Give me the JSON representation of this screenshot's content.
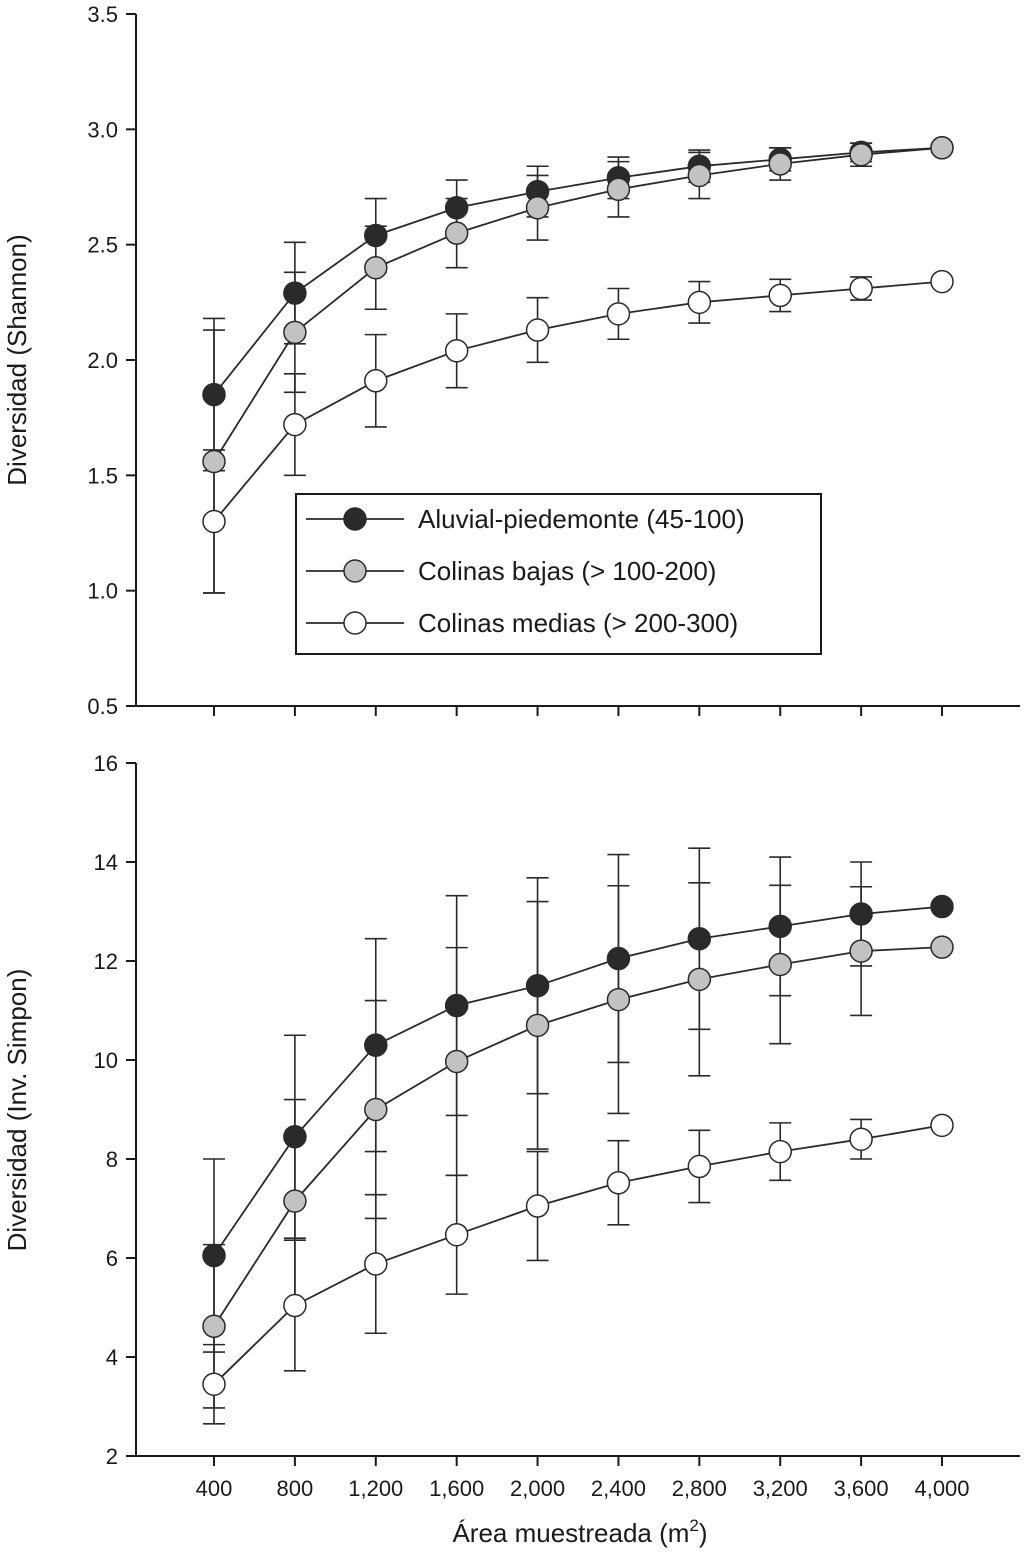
{
  "colors": {
    "Aluvial-piedemonte (45-100)": "#2a2a2a",
    "Colinas bajas (> 100-200)": "#c2c2c2",
    "Colinas medias (> 200-300)": "#ffffff",
    "line": "#2a2a2a"
  },
  "legend": {
    "items": [
      {
        "label": "Aluvial-piedemonte (45-100)"
      },
      {
        "label": "Colinas bajas (> 100-200)"
      },
      {
        "label": "Colinas medias (> 200-300)"
      }
    ],
    "placement": "inside-top-panel-lower-right"
  },
  "xaxis": {
    "label_prefix": "Área muestreada (m",
    "label_sup": "2",
    "label_suffix": ")",
    "tick_labels": [
      "400",
      "800",
      "1,200",
      "1,600",
      "2,000",
      "2,400",
      "2,800",
      "3,200",
      "3,600",
      "4,000"
    ]
  },
  "chart_data": [
    {
      "type": "line",
      "ylabel": "Diversidad (Shannon)",
      "ylim": [
        0.5,
        3.5
      ],
      "yticks": [
        "0.5",
        "1.0",
        "1.5",
        "2.0",
        "2.5",
        "3.0",
        "3.5"
      ],
      "x": [
        400,
        800,
        1200,
        1600,
        2000,
        2400,
        2800,
        3200,
        3600,
        4000
      ],
      "xlim": [
        400,
        4000
      ],
      "grid": false,
      "series": [
        {
          "name": "Aluvial-piedemonte (45-100)",
          "values": [
            1.85,
            2.29,
            2.54,
            2.66,
            2.73,
            2.79,
            2.84,
            2.87,
            2.9,
            2.92
          ],
          "err": [
            0.33,
            0.22,
            0.16,
            0.12,
            0.11,
            0.09,
            0.07,
            0.05,
            0.04,
            0.0
          ]
        },
        {
          "name": "Colinas bajas (> 100-200)",
          "values": [
            1.56,
            2.12,
            2.4,
            2.55,
            2.66,
            2.74,
            2.8,
            2.85,
            2.89,
            2.92
          ],
          "err": [
            0.57,
            0.26,
            0.18,
            0.15,
            0.14,
            0.12,
            0.1,
            0.07,
            0.05,
            0.0
          ]
        },
        {
          "name": "Colinas medias (> 200-300)",
          "values": [
            1.3,
            1.72,
            1.91,
            2.04,
            2.13,
            2.2,
            2.25,
            2.28,
            2.31,
            2.34
          ],
          "err": [
            0.31,
            0.22,
            0.2,
            0.16,
            0.14,
            0.11,
            0.09,
            0.07,
            0.05,
            0.0
          ]
        }
      ]
    },
    {
      "type": "line",
      "ylabel": "Diversidad (Inv. Simpon)",
      "ylim": [
        2,
        16
      ],
      "yticks": [
        "2",
        "4",
        "6",
        "8",
        "10",
        "12",
        "14",
        "16"
      ],
      "x": [
        400,
        800,
        1200,
        1600,
        2000,
        2400,
        2800,
        3200,
        3600,
        4000
      ],
      "xlim": [
        400,
        4000
      ],
      "grid": false,
      "series": [
        {
          "name": "Aluvial-piedemonte (45-100)",
          "values": [
            6.05,
            8.45,
            10.3,
            11.1,
            11.5,
            12.05,
            12.45,
            12.7,
            12.95,
            13.1
          ],
          "err": [
            1.95,
            2.05,
            2.15,
            2.22,
            2.18,
            2.1,
            1.83,
            1.4,
            1.05,
            0.0
          ]
        },
        {
          "name": "Colinas bajas (> 100-200)",
          "values": [
            4.62,
            7.15,
            9.0,
            9.97,
            10.7,
            11.22,
            11.63,
            11.93,
            12.2,
            12.28
          ],
          "err": [
            1.65,
            2.05,
            2.2,
            2.3,
            2.5,
            2.3,
            1.95,
            1.6,
            1.3,
            0.0
          ]
        },
        {
          "name": "Colinas medias (> 200-300)",
          "values": [
            3.45,
            5.04,
            5.88,
            6.47,
            7.05,
            7.52,
            7.85,
            8.15,
            8.4,
            8.68
          ],
          "err": [
            0.8,
            1.32,
            1.4,
            1.2,
            1.1,
            0.85,
            0.73,
            0.58,
            0.4,
            0.0
          ]
        }
      ]
    }
  ]
}
